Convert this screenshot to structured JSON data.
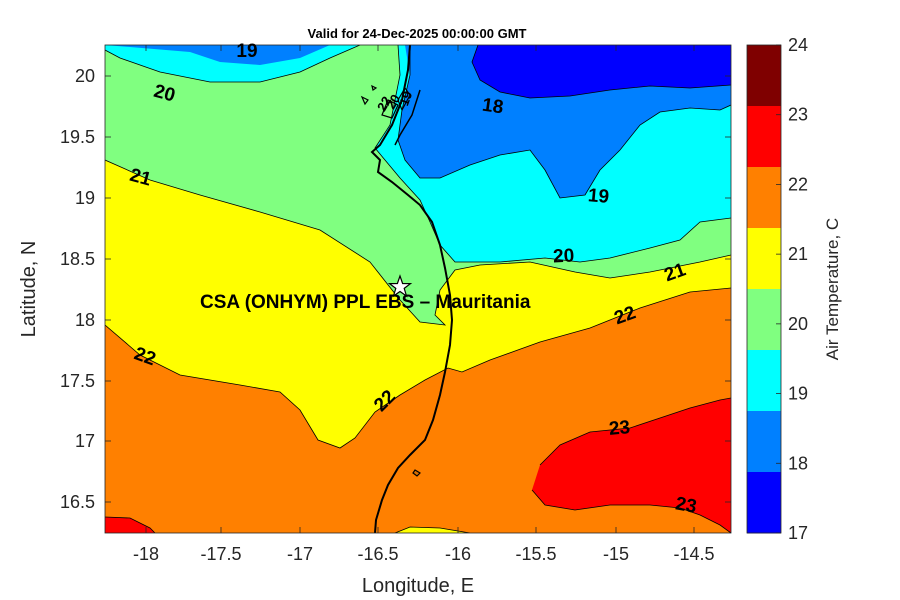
{
  "title": "Valid for 24-Dec-2025 00:00:00 GMT",
  "x_axis": {
    "label": "Longitude, E",
    "ticks": [
      "-18",
      "-17.5",
      "-17",
      "-16.5",
      "-16",
      "-15.5",
      "-15",
      "-14.5"
    ]
  },
  "y_axis": {
    "label": "Latitude, N",
    "ticks": [
      "20",
      "19.5",
      "19",
      "18.5",
      "18",
      "17.5",
      "17",
      "16.5"
    ]
  },
  "colorbar": {
    "label": "Air Temperature, C",
    "ticks": [
      "24",
      "23",
      "22",
      "21",
      "20",
      "19",
      "18",
      "17"
    ],
    "colors": [
      "#7f0000",
      "#ff0000",
      "#ff8000",
      "#ffff00",
      "#80ff80",
      "#00ffff",
      "#0080ff",
      "#0000ff"
    ]
  },
  "site": {
    "name": "CSA (ONHYM) PPL EBS  – Mauritania",
    "marker": "star-icon"
  },
  "contour_labels": [
    "19",
    "20",
    "21",
    "22",
    "18",
    "19",
    "20",
    "21",
    "22",
    "23",
    "23",
    "22",
    "22",
    "20",
    "19"
  ],
  "fill_colors": {
    "t17_18": "#0000ff",
    "t18_19": "#0080ff",
    "t19_20": "#00ffff",
    "t20_21": "#80ff80",
    "t21_22": "#ffff00",
    "t22_23": "#ff8000",
    "t23_24": "#ff0000"
  }
}
